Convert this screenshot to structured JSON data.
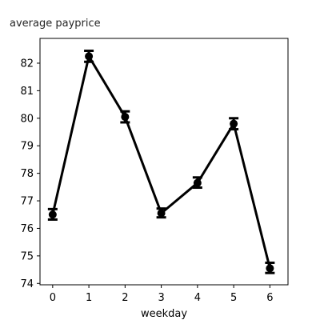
{
  "chart_data": {
    "type": "line",
    "title": "average payprice",
    "xlabel": "weekday",
    "ylabel": "",
    "x": [
      0,
      1,
      2,
      3,
      4,
      5,
      6
    ],
    "series": [
      {
        "values": [
          76.5,
          82.25,
          80.05,
          76.55,
          77.65,
          79.8,
          74.55
        ],
        "err_low": [
          76.32,
          82.05,
          79.85,
          76.4,
          77.48,
          79.6,
          74.38
        ],
        "err_high": [
          76.7,
          82.45,
          80.25,
          76.72,
          77.85,
          80.0,
          74.75
        ]
      }
    ],
    "xticks": [
      "0",
      "1",
      "2",
      "3",
      "4",
      "5",
      "6"
    ],
    "yticks": [
      "74",
      "75",
      "76",
      "77",
      "78",
      "79",
      "80",
      "81",
      "82"
    ],
    "xlim": [
      -0.35,
      6.5
    ],
    "ylim": [
      73.95,
      82.9
    ],
    "grid": false,
    "line_color": "#000000"
  }
}
